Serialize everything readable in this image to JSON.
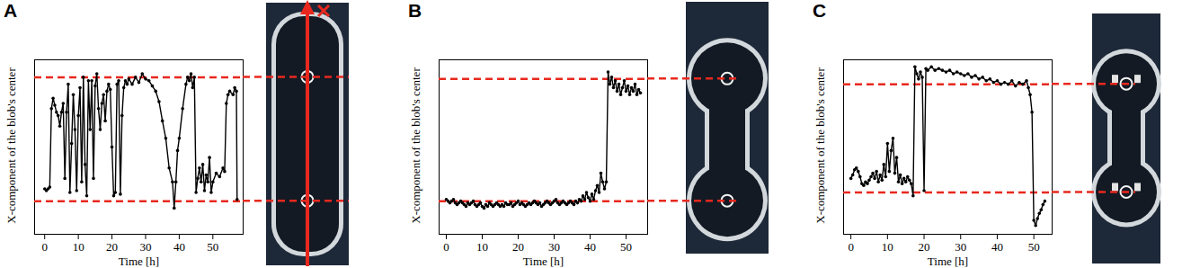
{
  "chart_data": [
    {
      "type": "line",
      "title": "A",
      "x_label": "Time [h]",
      "y_label": "X-component of the blob's center",
      "x": [
        0,
        0.5,
        1,
        1.5,
        2,
        2.5,
        3,
        3.5,
        4,
        4.5,
        5,
        5.5,
        6,
        6.5,
        7,
        7.5,
        8,
        8.5,
        9,
        9.5,
        10,
        10.5,
        11,
        11.5,
        12,
        12.5,
        13,
        13.5,
        14,
        14.5,
        15,
        15.5,
        16,
        16.5,
        17,
        17.5,
        18,
        18.5,
        19,
        19.5,
        20,
        20.5,
        21,
        21.5,
        22,
        22.5,
        23,
        23.5,
        24,
        24.5,
        25,
        26,
        27,
        28,
        29,
        30,
        31,
        32,
        33,
        34,
        35,
        36,
        37,
        38,
        38.5,
        39,
        39.5,
        40,
        41,
        42,
        42.5,
        43,
        43.5,
        44,
        44.5,
        45,
        45.5,
        46,
        46.5,
        47,
        47.5,
        48,
        48.5,
        49,
        49.5,
        50,
        51,
        52,
        53,
        53.5,
        54,
        54.5,
        55,
        56,
        56.5,
        57,
        57.2
      ],
      "series": [
        {
          "color": "#000000",
          "marker": "circle",
          "values": [
            26,
            25,
            26,
            27,
            72,
            78,
            74,
            70,
            68,
            62,
            70,
            75,
            32,
            70,
            86,
            24,
            52,
            80,
            60,
            25,
            68,
            84,
            30,
            90,
            40,
            22,
            88,
            60,
            88,
            32,
            85,
            92,
            72,
            60,
            75,
            80,
            65,
            82,
            86,
            83,
            50,
            22,
            24,
            86,
            88,
            23,
            68,
            84,
            88,
            86,
            89,
            86,
            90,
            87,
            92,
            89,
            88,
            85,
            82,
            76,
            65,
            55,
            38,
            30,
            15,
            30,
            48,
            55,
            72,
            86,
            90,
            88,
            92,
            84,
            90,
            24,
            32,
            38,
            30,
            40,
            25,
            34,
            30,
            44,
            24,
            30,
            35,
            33,
            38,
            36,
            75,
            80,
            82,
            80,
            84,
            82,
            20
          ]
        }
      ],
      "xlim": [
        -3,
        59
      ],
      "xticks": [
        0,
        10,
        20,
        30,
        40,
        50
      ],
      "ylim": [
        0,
        100
      ],
      "yticks": [],
      "tick_labels": "x",
      "reference_lines": {
        "values": [
          19,
          90
        ],
        "color": "#e8281e",
        "line_style": "dashed"
      }
    },
    {
      "type": "line",
      "title": "B",
      "x_label": "Time [h]",
      "y_label": "X-component of the blob's center",
      "x": [
        0,
        0.5,
        1,
        1.5,
        2,
        2.5,
        3,
        3.5,
        4,
        4.5,
        5,
        5.5,
        6,
        6.5,
        7,
        7.5,
        8,
        8.5,
        9,
        9.5,
        10,
        10.5,
        11,
        11.5,
        12,
        12.5,
        13,
        13.5,
        14,
        14.5,
        15,
        15.5,
        16,
        16.5,
        17,
        17.5,
        18,
        18.5,
        19,
        19.5,
        20,
        20.5,
        21,
        21.5,
        22,
        22.5,
        23,
        23.5,
        24,
        24.5,
        25,
        25.5,
        26,
        26.5,
        27,
        27.5,
        28,
        28.5,
        29,
        29.5,
        30,
        30.5,
        31,
        31.5,
        32,
        32.5,
        33,
        33.5,
        34,
        34.5,
        35,
        35.5,
        36,
        36.5,
        37,
        37.5,
        38,
        38.5,
        39,
        39.5,
        40,
        40.5,
        41,
        41.5,
        42,
        42.5,
        43,
        43.5,
        44,
        44.5,
        45,
        45.5,
        46,
        46.5,
        47,
        47.5,
        48,
        48.5,
        49,
        49.5,
        50,
        50.5,
        51,
        51.5,
        52,
        52.5,
        53,
        53.5,
        54
      ],
      "series": [
        {
          "color": "#000000",
          "marker": "circle",
          "values": [
            20,
            19,
            18,
            19,
            20,
            18,
            17,
            18,
            19,
            18,
            17,
            16,
            18,
            17,
            18,
            19,
            17,
            16,
            17,
            18,
            16,
            15,
            17,
            16,
            18,
            17,
            16,
            17,
            18,
            17,
            16,
            17,
            16,
            18,
            17,
            17,
            18,
            16,
            17,
            18,
            19,
            17,
            18,
            17,
            16,
            17,
            18,
            17,
            18,
            19,
            18,
            17,
            18,
            16,
            17,
            18,
            19,
            18,
            17,
            18,
            19,
            20,
            18,
            17,
            18,
            19,
            18,
            17,
            18,
            19,
            18,
            17,
            19,
            18,
            20,
            19,
            22,
            20,
            24,
            21,
            19,
            23,
            20,
            25,
            28,
            24,
            35,
            30,
            26,
            30,
            93,
            86,
            90,
            84,
            88,
            82,
            86,
            80,
            84,
            88,
            82,
            85,
            80,
            84,
            82,
            86,
            80,
            83,
            81
          ]
        }
      ],
      "xlim": [
        -2,
        56
      ],
      "xticks": [
        0,
        10,
        20,
        30,
        40,
        50
      ],
      "ylim": [
        0,
        100
      ],
      "yticks": [],
      "tick_labels": "x",
      "reference_lines": {
        "values": [
          19,
          89
        ],
        "color": "#e8281e",
        "line_style": "dashed"
      }
    },
    {
      "type": "line",
      "title": "C",
      "x_label": "Time [h]",
      "y_label": "X-component of the blob's center",
      "x": [
        0,
        0.5,
        1,
        1.5,
        2,
        2.5,
        3,
        3.5,
        4,
        4.5,
        5,
        5.5,
        6,
        6.5,
        7,
        7.5,
        8,
        8.5,
        9,
        9.5,
        10,
        10.5,
        11,
        11.5,
        12,
        12.5,
        13,
        13.5,
        14,
        14.5,
        15,
        15.5,
        16,
        16.5,
        17,
        17.5,
        18,
        18.5,
        19,
        19.5,
        20,
        20.5,
        21,
        22,
        23,
        24,
        25,
        26,
        27,
        28,
        29,
        30,
        31,
        32,
        33,
        34,
        35,
        36,
        37,
        38,
        39,
        40,
        41,
        42,
        43,
        44,
        45,
        46,
        47,
        48,
        48.5,
        49,
        49.5,
        50,
        50.5,
        51,
        51.5,
        52,
        52.5,
        53
      ],
      "series": [
        {
          "color": "#000000",
          "marker": "circle",
          "values": [
            32,
            34,
            37,
            38,
            36,
            33,
            29,
            28,
            30,
            29,
            31,
            33,
            35,
            32,
            36,
            30,
            34,
            31,
            40,
            33,
            52,
            36,
            48,
            55,
            35,
            44,
            30,
            34,
            29,
            32,
            30,
            33,
            31,
            29,
            22,
            96,
            92,
            89,
            93,
            90,
            25,
            95,
            94,
            96,
            94,
            95,
            94,
            93,
            94,
            92,
            93,
            92,
            91,
            92,
            90,
            91,
            89,
            90,
            88,
            89,
            87,
            88,
            86,
            87,
            86,
            88,
            85,
            87,
            86,
            88,
            84,
            80,
            70,
            8,
            5,
            9,
            12,
            14,
            17,
            19
          ]
        }
      ],
      "xlim": [
        -2,
        55
      ],
      "xticks": [
        0,
        10,
        20,
        30,
        40,
        50
      ],
      "ylim": [
        0,
        100
      ],
      "yticks": [],
      "tick_labels": "x",
      "reference_lines": {
        "values": [
          24,
          86
        ],
        "color": "#e8281e",
        "line_style": "dashed"
      }
    }
  ]
}
